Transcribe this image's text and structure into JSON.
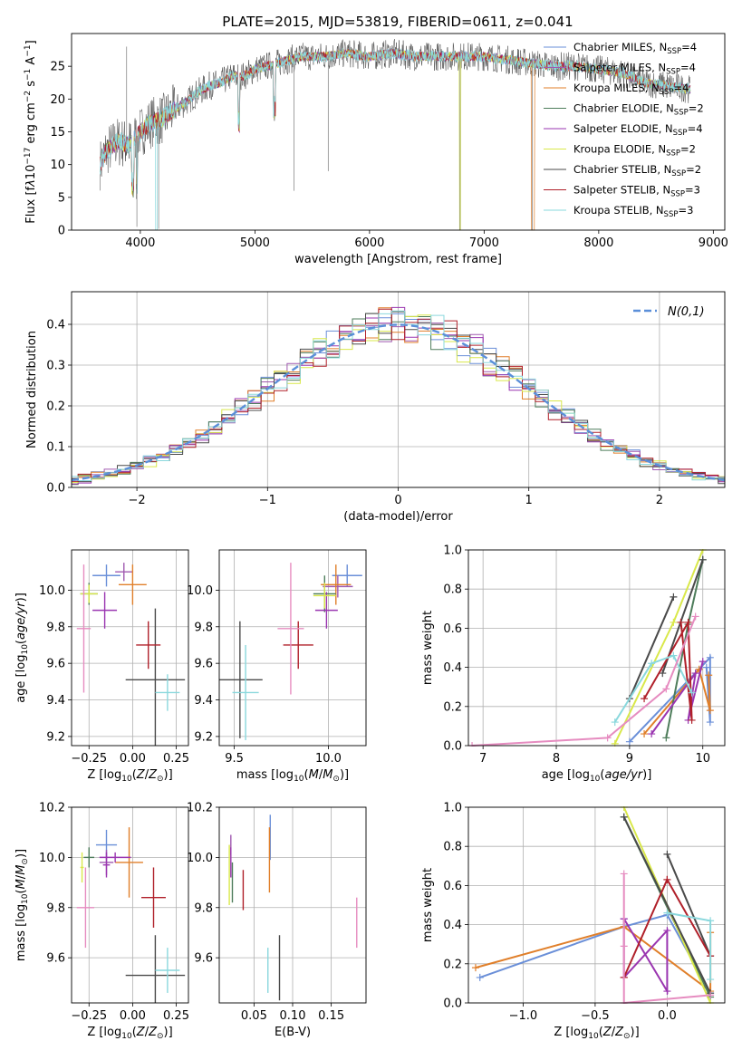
{
  "figure_title": "PLATE=2015, MJD=53819, FIBERID=0611, z=0.041",
  "series_colors": [
    "#6a8fd8",
    "#a05ab0",
    "#e07f2a",
    "#4e7d5b",
    "#9a35b0",
    "#d9e84a",
    "#4a4a4a",
    "#b0202a",
    "#8ad8dd"
  ],
  "legend": [
    {
      "name": "Chabrier MILES, N_SSP=4",
      "color": "#6a8fd8"
    },
    {
      "name": "Salpeter MILES, N_SSP=4",
      "color": "#a05ab0"
    },
    {
      "name": "Kroupa MILES, N_SSP=4",
      "color": "#e07f2a"
    },
    {
      "name": "Chabrier ELODIE, N_SSP=2",
      "color": "#4e7d5b"
    },
    {
      "name": "Salpeter ELODIE, N_SSP=4",
      "color": "#9a35b0"
    },
    {
      "name": "Kroupa ELODIE, N_SSP=2",
      "color": "#d9e84a"
    },
    {
      "name": "Chabrier STELIB, N_SSP=2",
      "color": "#4a4a4a"
    },
    {
      "name": "Salpeter STELIB, N_SSP=3",
      "color": "#b0202a"
    },
    {
      "name": "Kroupa STELIB, N_SSP=3",
      "color": "#8ad8dd"
    }
  ],
  "chart_data": [
    {
      "id": "spectrum",
      "type": "line",
      "xlabel": "wavelength [Angstrom, rest frame]",
      "ylabel": "Flux [f_λ 10^-17 erg cm^-2 s^-1 A^-1]",
      "xlim": [
        3400,
        9100
      ],
      "ylim": [
        0,
        30
      ],
      "xticks": [
        4000,
        5000,
        6000,
        7000,
        8000,
        9000
      ],
      "yticks": [
        0,
        5,
        10,
        15,
        20,
        25
      ],
      "x": [
        3650,
        3700,
        3800,
        3900,
        4000,
        4100,
        4200,
        4300,
        4400,
        4500,
        4600,
        4700,
        4800,
        4900,
        5000,
        5200,
        5400,
        5600,
        5800,
        6000,
        6200,
        6400,
        6600,
        6800,
        7000,
        7200,
        7400,
        7600,
        7800,
        8000,
        8200,
        8400,
        8600,
        8800
      ],
      "y": [
        10,
        12,
        13.5,
        13,
        15,
        16.5,
        17,
        18.5,
        19.5,
        21,
        22,
        22.5,
        23.5,
        23.5,
        24.5,
        25.5,
        26.5,
        26.5,
        27,
        26.5,
        27,
        26.5,
        26.5,
        26.5,
        26.5,
        26,
        25.5,
        25,
        25,
        24.5,
        24,
        22.5,
        22,
        21.5
      ],
      "grid": false
    },
    {
      "id": "residuals",
      "type": "step",
      "xlabel": "(data-model)/error",
      "ylabel": "Normed distribution",
      "xlim": [
        -2.5,
        2.5
      ],
      "ylim": [
        0,
        0.48
      ],
      "xticks": [
        -2,
        -1,
        0,
        1,
        2
      ],
      "yticks": [
        0,
        0.1,
        0.2,
        0.3,
        0.4
      ],
      "gaussian_label": "N(0,1)",
      "gaussian_color": "#5b8fd9",
      "grid": true
    },
    {
      "id": "age_vs_Z",
      "type": "errorbar",
      "xlabel": "Z [log10(Z/Z_sun)]",
      "ylabel": "age  [log10(age/yr)]",
      "xlim": [
        -0.35,
        0.32
      ],
      "ylim": [
        9.15,
        10.22
      ],
      "xticks": [
        -0.25,
        0,
        0.25
      ],
      "xticklabels": [
        "−0.25",
        "0.00",
        "0.25"
      ],
      "yticks": [
        9.2,
        9.4,
        9.6,
        9.8,
        10.0
      ],
      "points": [
        {
          "x": -0.15,
          "y": 10.08,
          "xerr": 0.08,
          "yerr": 0.06
        },
        {
          "x": -0.05,
          "y": 10.1,
          "xerr": 0.05,
          "yerr": 0.05
        },
        {
          "x": 0.0,
          "y": 10.03,
          "xerr": 0.08,
          "yerr": 0.11
        },
        {
          "x": -0.25,
          "y": 9.98,
          "xerr": 0.05,
          "yerr": 0.06
        },
        {
          "x": -0.16,
          "y": 9.89,
          "xerr": 0.07,
          "yerr": 0.1
        },
        {
          "x": -0.25,
          "y": 9.98,
          "xerr": 0.05,
          "yerr": 0.05
        },
        {
          "x": 0.13,
          "y": 9.51,
          "xerr": 0.17,
          "yerr": 0.39
        },
        {
          "x": 0.09,
          "y": 9.7,
          "xerr": 0.07,
          "yerr": 0.13
        },
        {
          "x": 0.2,
          "y": 9.44,
          "xerr": 0.07,
          "yerr": 0.1
        }
      ],
      "extra": [
        {
          "x": -0.28,
          "y": 9.79,
          "xerr": 0.04,
          "yerr": 0.35,
          "color": "#e68cc0"
        }
      ],
      "grid": true
    },
    {
      "id": "age_vs_mass",
      "type": "errorbar",
      "xlabel": "mass [log10(M/M_sun)]",
      "ylabel": "",
      "xlim": [
        9.42,
        10.2
      ],
      "ylim": [
        9.15,
        10.22
      ],
      "xticks": [
        9.5,
        10.0
      ],
      "yticks": [
        9.2,
        9.4,
        9.6,
        9.8,
        10.0
      ],
      "points": [
        {
          "x": 10.1,
          "y": 10.08,
          "xerr": 0.08,
          "yerr": 0.06
        },
        {
          "x": 10.05,
          "y": 10.02,
          "xerr": 0.08,
          "yerr": 0.06
        },
        {
          "x": 10.04,
          "y": 10.03,
          "xerr": 0.08,
          "yerr": 0.11
        },
        {
          "x": 9.98,
          "y": 9.98,
          "xerr": 0.06,
          "yerr": 0.1
        },
        {
          "x": 9.99,
          "y": 9.89,
          "xerr": 0.06,
          "yerr": 0.1
        },
        {
          "x": 9.98,
          "y": 9.97,
          "xerr": 0.06,
          "yerr": 0.07
        },
        {
          "x": 9.53,
          "y": 9.51,
          "xerr": 0.12,
          "yerr": 0.32
        },
        {
          "x": 9.84,
          "y": 9.7,
          "xerr": 0.08,
          "yerr": 0.13
        },
        {
          "x": 9.56,
          "y": 9.44,
          "xerr": 0.07,
          "yerr": 0.26
        }
      ],
      "extra": [
        {
          "x": 9.8,
          "y": 9.79,
          "xerr": 0.07,
          "yerr": 0.36,
          "color": "#e68cc0"
        }
      ],
      "grid": true
    },
    {
      "id": "weight_vs_age",
      "type": "line",
      "xlabel": "age  [log10(age/yr)]",
      "ylabel": "mass weight",
      "xlim": [
        6.8,
        10.3
      ],
      "ylim": [
        0,
        1
      ],
      "xticks": [
        7,
        8,
        9,
        10
      ],
      "yticks": [
        0.0,
        0.2,
        0.4,
        0.6,
        0.8,
        1.0
      ],
      "series": [
        {
          "color": "#6a8fd8",
          "x": [
            9.0,
            10.1,
            10.1,
            10.05
          ],
          "y": [
            0.02,
            0.45,
            0.12,
            0.4
          ]
        },
        {
          "color": "#e07f2a",
          "x": [
            9.2,
            9.95,
            10.1,
            10.08
          ],
          "y": [
            0.06,
            0.39,
            0.18,
            0.36
          ]
        },
        {
          "color": "#4e7d5b",
          "x": [
            9.5,
            9.8,
            10.0
          ],
          "y": [
            0.04,
            0.62,
            0.95
          ]
        },
        {
          "color": "#9a35b0",
          "x": [
            9.3,
            9.9,
            9.8,
            10.0
          ],
          "y": [
            0.06,
            0.37,
            0.13,
            0.43
          ]
        },
        {
          "color": "#d9e84a",
          "x": [
            8.8,
            9.6,
            10.0
          ],
          "y": [
            0.01,
            0.63,
            1.0
          ]
        },
        {
          "color": "#4a4a4a",
          "x": [
            9.0,
            9.6
          ],
          "y": [
            0.24,
            0.76
          ]
        },
        {
          "color": "#4a4a4a",
          "x": [
            9.45,
            10.0
          ],
          "y": [
            0.37,
            0.95
          ]
        },
        {
          "color": "#b0202a",
          "x": [
            9.2,
            9.8,
            9.85,
            9.7
          ],
          "y": [
            0.24,
            0.63,
            0.13,
            0.63
          ]
        },
        {
          "color": "#8ad8dd",
          "x": [
            8.8,
            9.3,
            9.6,
            9.85
          ],
          "y": [
            0.12,
            0.42,
            0.46,
            0.27
          ]
        },
        {
          "color": "#e68cc0",
          "x": [
            6.85,
            8.7,
            9.5,
            9.9
          ],
          "y": [
            0.0,
            0.04,
            0.29,
            0.66
          ]
        }
      ],
      "grid": true
    },
    {
      "id": "mass_vs_Z",
      "type": "errorbar",
      "xlabel": "Z [log10(Z/Z_sun)]",
      "ylabel": "mass [log10(M/M_sun)]",
      "xlim": [
        -0.35,
        0.32
      ],
      "ylim": [
        9.42,
        10.2
      ],
      "xticks": [
        -0.25,
        0,
        0.25
      ],
      "xticklabels": [
        "−0.25",
        "0.00",
        "0.25"
      ],
      "yticks": [
        9.6,
        9.8,
        10.0,
        10.2
      ],
      "points": [
        {
          "x": -0.15,
          "y": 10.05,
          "xerr": 0.06,
          "yerr": 0.06
        },
        {
          "x": -0.15,
          "y": 9.98,
          "xerr": 0.04,
          "yerr": 0.05
        },
        {
          "x": -0.02,
          "y": 9.98,
          "xerr": 0.08,
          "yerr": 0.14
        },
        {
          "x": -0.25,
          "y": 10.0,
          "xerr": 0.03,
          "yerr": 0.04
        },
        {
          "x": -0.15,
          "y": 9.97,
          "xerr": 0.02,
          "yerr": 0.05
        },
        {
          "x": -0.29,
          "y": 9.96,
          "xerr": 0.01,
          "yerr": 0.06
        },
        {
          "x": 0.13,
          "y": 9.53,
          "xerr": 0.17,
          "yerr": 0.16
        },
        {
          "x": 0.12,
          "y": 9.84,
          "xerr": 0.07,
          "yerr": 0.12
        },
        {
          "x": 0.2,
          "y": 9.55,
          "xerr": 0.07,
          "yerr": 0.09
        }
      ],
      "extra": [
        {
          "x": -0.27,
          "y": 9.8,
          "xerr": 0.05,
          "yerr": 0.16,
          "color": "#e68cc0"
        },
        {
          "x": -0.1,
          "y": 10.0,
          "xerr": 0.09,
          "yerr": 0.02,
          "color": "#9a35b0"
        }
      ],
      "grid": true
    },
    {
      "id": "mass_vs_EBV",
      "type": "errorbar",
      "xlabel": "E(B-V)",
      "ylabel": "",
      "xlim": [
        0.005,
        0.195
      ],
      "ylim": [
        9.42,
        10.2
      ],
      "xticks": [
        0.05,
        0.1,
        0.15
      ],
      "yticks": [
        9.6,
        9.8,
        10.0,
        10.2
      ],
      "points": [
        {
          "x": 0.071,
          "y": 10.08,
          "xerr": 0,
          "yerr": 0.09
        },
        {
          "x": 0.02,
          "y": 10.05,
          "xerr": 0,
          "yerr": 0.04
        },
        {
          "x": 0.07,
          "y": 9.99,
          "xerr": 0,
          "yerr": 0.13
        },
        {
          "x": 0.022,
          "y": 9.9,
          "xerr": 0,
          "yerr": 0.08
        },
        {
          "x": 0.02,
          "y": 9.98,
          "xerr": 0,
          "yerr": 0.06
        },
        {
          "x": 0.018,
          "y": 9.93,
          "xerr": 0,
          "yerr": 0.12
        },
        {
          "x": 0.083,
          "y": 9.56,
          "xerr": 0,
          "yerr": 0.13
        },
        {
          "x": 0.036,
          "y": 9.87,
          "xerr": 0,
          "yerr": 0.08
        },
        {
          "x": 0.068,
          "y": 9.55,
          "xerr": 0,
          "yerr": 0.09
        }
      ],
      "extra": [
        {
          "x": 0.183,
          "y": 9.74,
          "xerr": 0,
          "yerr": 0.1,
          "color": "#e68cc0"
        }
      ],
      "grid": true
    },
    {
      "id": "weight_vs_Z",
      "type": "line",
      "xlabel": "Z [log10(Z/Z_sun)]",
      "ylabel": "mass weight",
      "xlim": [
        -1.38,
        0.4
      ],
      "ylim": [
        0,
        1
      ],
      "xticks": [
        -1.0,
        -0.5,
        0.0
      ],
      "xticklabels": [
        "−1.0",
        "−0.5",
        "0.0"
      ],
      "yticks": [
        0.0,
        0.2,
        0.4,
        0.6,
        0.8,
        1.0
      ],
      "series": [
        {
          "color": "#6a8fd8",
          "x": [
            -1.3,
            -0.3,
            0.0,
            0.3
          ],
          "y": [
            0.13,
            0.39,
            0.45,
            0.05
          ]
        },
        {
          "color": "#e07f2a",
          "x": [
            -1.33,
            -0.3,
            0.3,
            0.3
          ],
          "y": [
            0.18,
            0.39,
            0.06,
            0.36
          ]
        },
        {
          "color": "#4e7d5b",
          "x": [
            -0.3,
            0.3
          ],
          "y": [
            0.95,
            0.03
          ]
        },
        {
          "color": "#d9e84a",
          "x": [
            -0.3,
            0.3
          ],
          "y": [
            1.0,
            0.0
          ]
        },
        {
          "color": "#4a4a4a",
          "x": [
            0.0,
            0.3
          ],
          "y": [
            0.76,
            0.24
          ]
        },
        {
          "color": "#4a4a4a",
          "x": [
            -0.3,
            0.3
          ],
          "y": [
            0.95,
            0.05
          ]
        },
        {
          "color": "#9a35b0",
          "x": [
            -0.3,
            -0.3,
            0.0,
            0.0,
            -0.3
          ],
          "y": [
            0.43,
            0.13,
            0.37,
            0.06,
            0.43
          ]
        },
        {
          "color": "#b0202a",
          "x": [
            -0.3,
            0.0,
            0.3,
            0.0,
            -0.3
          ],
          "y": [
            0.13,
            0.63,
            0.24,
            0.63,
            0.13
          ]
        },
        {
          "color": "#8ad8dd",
          "x": [
            0.0,
            0.3,
            0.3
          ],
          "y": [
            0.46,
            0.42,
            0.12
          ]
        },
        {
          "color": "#e68cc0",
          "x": [
            -0.3,
            -0.3,
            -0.3,
            0.3
          ],
          "y": [
            0.66,
            0.29,
            0.0,
            0.04
          ]
        }
      ],
      "grid": true
    }
  ]
}
